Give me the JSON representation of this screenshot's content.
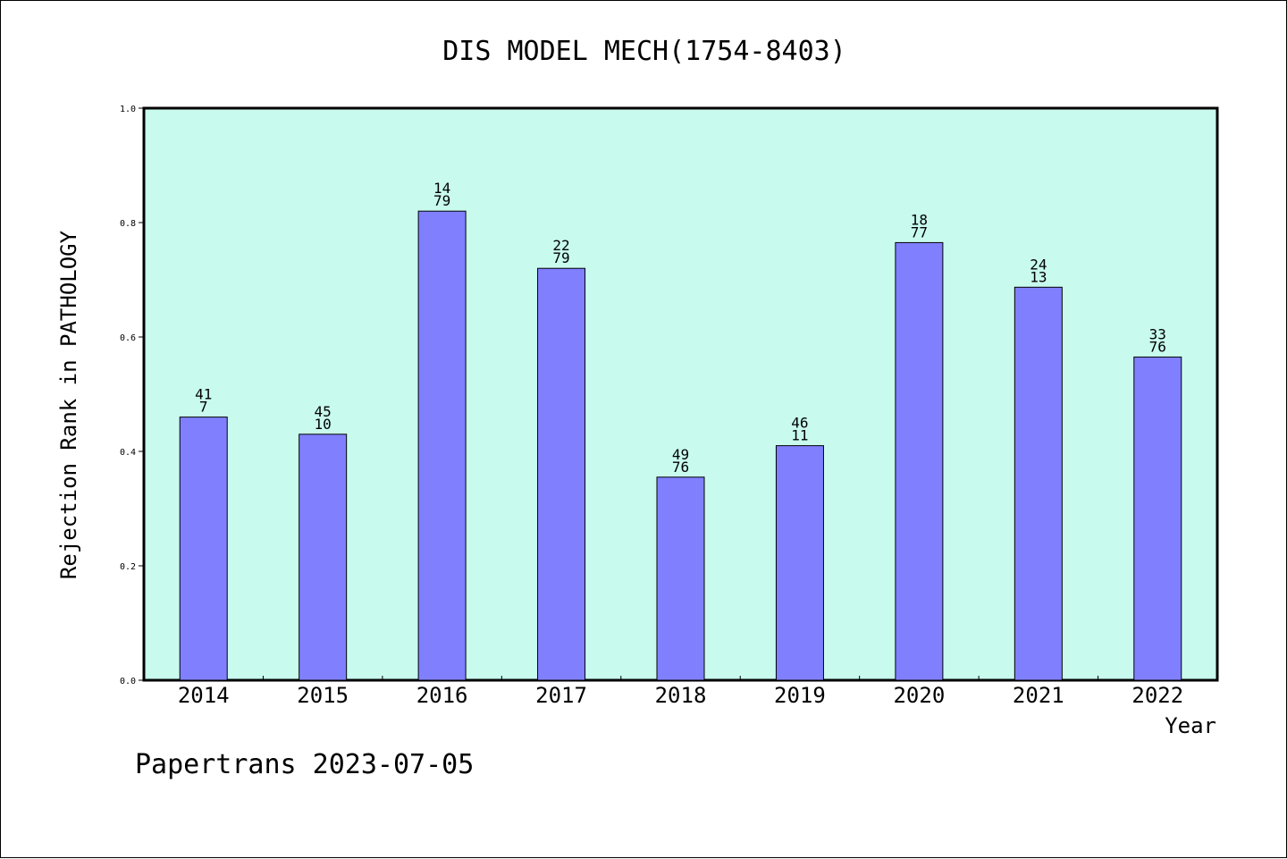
{
  "chart_data": {
    "type": "bar",
    "title": "DIS MODEL MECH(1754-8403)",
    "xlabel": "Year",
    "ylabel": "Rejection Rank in PATHOLOGY",
    "footer": "Papertrans 2023-07-05",
    "categories": [
      "2014",
      "2015",
      "2016",
      "2017",
      "2018",
      "2019",
      "2020",
      "2021",
      "2022"
    ],
    "values": [
      0.46,
      0.43,
      0.82,
      0.72,
      0.355,
      0.41,
      0.765,
      0.687,
      0.565
    ],
    "bar_labels": [
      [
        "41",
        "7"
      ],
      [
        "45",
        "10"
      ],
      [
        "14",
        "79"
      ],
      [
        "22",
        "79"
      ],
      [
        "49",
        "76"
      ],
      [
        "46",
        "11"
      ],
      [
        "18",
        "77"
      ],
      [
        "24",
        "13"
      ],
      [
        "33",
        "76"
      ]
    ],
    "ylim": [
      0,
      1.0
    ],
    "yticks": [
      "0.0",
      "0.2",
      "0.4",
      "0.6",
      "0.8",
      "1.0"
    ],
    "grid": false,
    "legend": "none",
    "colors": {
      "plot_background": "#c8fbee",
      "bar_fill": "#8080ff",
      "bar_stroke": "#000000"
    }
  }
}
